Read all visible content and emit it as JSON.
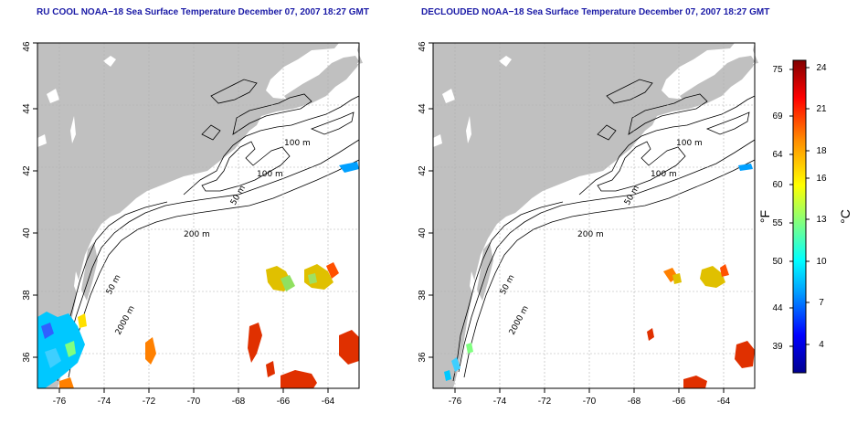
{
  "panels": [
    {
      "title": "RU COOL NOAA−18 Sea Surface Temperature December 07, 2007 18:27 GMT",
      "lat_ticks": [
        "36",
        "38",
        "40",
        "42",
        "44",
        "46"
      ],
      "lon_ticks": [
        "-76",
        "-74",
        "-72",
        "-70",
        "-68",
        "-66",
        "-64"
      ],
      "contour_labels": [
        "100 m",
        "100 m",
        "50 m",
        "200 m",
        "50 m",
        "2000 m"
      ]
    },
    {
      "title": "DECLOUDED NOAA−18 Sea Surface Temperature December 07, 2007 18:27 GMT",
      "lat_ticks": [
        "36",
        "38",
        "40",
        "42",
        "44",
        "46"
      ],
      "lon_ticks": [
        "-76",
        "-74",
        "-72",
        "-70",
        "-68",
        "-66",
        "-64"
      ],
      "contour_labels": [
        "100 m",
        "100 m",
        "50 m",
        "200 m",
        "50 m",
        "2000 m"
      ]
    }
  ],
  "colorbar": {
    "fahrenheit_unit": "°F",
    "celsius_unit": "°C",
    "fahrenheit_ticks": [
      "75",
      "69",
      "64",
      "60",
      "55",
      "50",
      "44",
      "39"
    ],
    "celsius_ticks": [
      "24",
      "21",
      "18",
      "16",
      "13",
      "10",
      "7",
      "4"
    ],
    "colors": [
      "#00008f",
      "#0000ff",
      "#00a0ff",
      "#00ffff",
      "#80ff80",
      "#ffff00",
      "#ff9000",
      "#ff0000",
      "#800000"
    ]
  },
  "colors": {
    "land": "#c0c0c0",
    "title": "#1a1aa6",
    "grid": "#b0b0b0"
  }
}
